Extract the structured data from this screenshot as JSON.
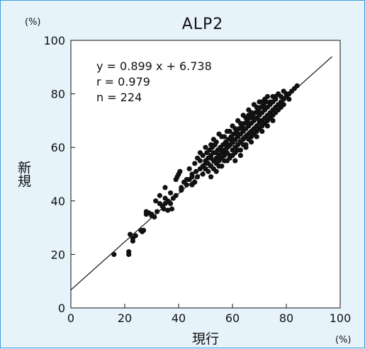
{
  "chart_data": {
    "type": "scatter",
    "title": "ALP2",
    "xlabel": "現行",
    "ylabel": "新規",
    "x_unit": "(%)",
    "y_unit": "(%)",
    "xlim": [
      0,
      100
    ],
    "ylim": [
      0,
      100
    ],
    "xticks": [
      "0",
      "20",
      "40",
      "60",
      "80",
      "100"
    ],
    "yticks": [
      "0",
      "20",
      "40",
      "60",
      "80",
      "100"
    ],
    "grid": false,
    "annotations": [
      "y = 0.899 x + 6.738",
      "r = 0.979",
      "n = 224"
    ],
    "regression": {
      "slope": 0.899,
      "intercept": 6.738,
      "x_range": [
        0,
        97
      ]
    },
    "points": [
      [
        16,
        20
      ],
      [
        21.5,
        21
      ],
      [
        21.5,
        20
      ],
      [
        22,
        27.5
      ],
      [
        23,
        25
      ],
      [
        23,
        26
      ],
      [
        26,
        29
      ],
      [
        26.5,
        28.5
      ],
      [
        28,
        35
      ],
      [
        29,
        35.5
      ],
      [
        30,
        34.5
      ],
      [
        31,
        34
      ],
      [
        31.5,
        40
      ],
      [
        32,
        36
      ],
      [
        33,
        42
      ],
      [
        34,
        38
      ],
      [
        34.5,
        37
      ],
      [
        35,
        45
      ],
      [
        35,
        39
      ],
      [
        36,
        40
      ],
      [
        36,
        36.5
      ],
      [
        37,
        39
      ],
      [
        37.5,
        37
      ],
      [
        38,
        41
      ],
      [
        39,
        48
      ],
      [
        39.5,
        49
      ],
      [
        40,
        50
      ],
      [
        40.5,
        51
      ],
      [
        41,
        44
      ],
      [
        42,
        47
      ],
      [
        43,
        46
      ],
      [
        44,
        48
      ],
      [
        44,
        52
      ],
      [
        45,
        49
      ],
      [
        45,
        50
      ],
      [
        46,
        47
      ],
      [
        46.5,
        51
      ],
      [
        47,
        49
      ],
      [
        48,
        52
      ],
      [
        48,
        55
      ],
      [
        49,
        53
      ],
      [
        49,
        57
      ],
      [
        50,
        52
      ],
      [
        50,
        55
      ],
      [
        50.5,
        58
      ],
      [
        51,
        54
      ],
      [
        51,
        56
      ],
      [
        51.5,
        59
      ],
      [
        52,
        53
      ],
      [
        52,
        57
      ],
      [
        52.5,
        60
      ],
      [
        53,
        55
      ],
      [
        53,
        58
      ],
      [
        53.5,
        61
      ],
      [
        54,
        54
      ],
      [
        54,
        56
      ],
      [
        54.5,
        59
      ],
      [
        55,
        55
      ],
      [
        55,
        57
      ],
      [
        55.5,
        60
      ],
      [
        56,
        56
      ],
      [
        56,
        58
      ],
      [
        56.5,
        61
      ],
      [
        57,
        57
      ],
      [
        57,
        59
      ],
      [
        57.5,
        62
      ],
      [
        58,
        58
      ],
      [
        58,
        60
      ],
      [
        58.5,
        63
      ],
      [
        59,
        57
      ],
      [
        59,
        61
      ],
      [
        59.5,
        64
      ],
      [
        60,
        59
      ],
      [
        60,
        62
      ],
      [
        60.5,
        65
      ],
      [
        61,
        60
      ],
      [
        61,
        63
      ],
      [
        61.5,
        66
      ],
      [
        62,
        61
      ],
      [
        62,
        64
      ],
      [
        62.5,
        67
      ],
      [
        63,
        62
      ],
      [
        63,
        65
      ],
      [
        63.5,
        68
      ],
      [
        64,
        63
      ],
      [
        64,
        66
      ],
      [
        64.5,
        69
      ],
      [
        65,
        64
      ],
      [
        65,
        67
      ],
      [
        65.5,
        70
      ],
      [
        66,
        65
      ],
      [
        66,
        68
      ],
      [
        66.5,
        71
      ],
      [
        67,
        66
      ],
      [
        67,
        69
      ],
      [
        67.5,
        72
      ],
      [
        68,
        67
      ],
      [
        68,
        70
      ],
      [
        68.5,
        73
      ],
      [
        69,
        68
      ],
      [
        69,
        71
      ],
      [
        69.5,
        74
      ],
      [
        70,
        69
      ],
      [
        70,
        72
      ],
      [
        70.5,
        75
      ],
      [
        71,
        70
      ],
      [
        71,
        73
      ],
      [
        71.5,
        76
      ],
      [
        72,
        71
      ],
      [
        72,
        74
      ],
      [
        72.5,
        77
      ],
      [
        73,
        72
      ],
      [
        73,
        75
      ],
      [
        74,
        73
      ],
      [
        74,
        76
      ],
      [
        75,
        74
      ],
      [
        75,
        77
      ],
      [
        76,
        75
      ],
      [
        76,
        78
      ],
      [
        77,
        76
      ],
      [
        78,
        77
      ],
      [
        78,
        79
      ],
      [
        79,
        78
      ],
      [
        80,
        79
      ],
      [
        80,
        80
      ],
      [
        81,
        80
      ],
      [
        82,
        81
      ],
      [
        83,
        82
      ],
      [
        84,
        83
      ],
      [
        49,
        50
      ],
      [
        51,
        51
      ],
      [
        53,
        52
      ],
      [
        55,
        53
      ],
      [
        57,
        55
      ],
      [
        59,
        56
      ],
      [
        61,
        58
      ],
      [
        63,
        59
      ],
      [
        65,
        61
      ],
      [
        67,
        62
      ],
      [
        69,
        64
      ],
      [
        71,
        66
      ],
      [
        73,
        68
      ],
      [
        75,
        70
      ],
      [
        52,
        49
      ],
      [
        54,
        51
      ],
      [
        56,
        53
      ],
      [
        58,
        55
      ],
      [
        60,
        57
      ],
      [
        62,
        59
      ],
      [
        64,
        61
      ],
      [
        66,
        63
      ],
      [
        68,
        65
      ],
      [
        70,
        67
      ],
      [
        72,
        69
      ],
      [
        74,
        71
      ],
      [
        76,
        73
      ],
      [
        78,
        75
      ],
      [
        62,
        70
      ],
      [
        64,
        72
      ],
      [
        66,
        74
      ],
      [
        68,
        76
      ],
      [
        70,
        77
      ],
      [
        72,
        78
      ],
      [
        60,
        68
      ],
      [
        58,
        66
      ],
      [
        56,
        64
      ],
      [
        54,
        62
      ],
      [
        52,
        61
      ],
      [
        50,
        60
      ],
      [
        48,
        58
      ],
      [
        47,
        56
      ],
      [
        46,
        54
      ],
      [
        50,
        54
      ],
      [
        52,
        56
      ],
      [
        54,
        58
      ],
      [
        56,
        59
      ],
      [
        58,
        61
      ],
      [
        60,
        63
      ],
      [
        62,
        65
      ],
      [
        64,
        67
      ],
      [
        66,
        69
      ],
      [
        68,
        71
      ],
      [
        70,
        73
      ],
      [
        72,
        75
      ],
      [
        74,
        77
      ],
      [
        76,
        79
      ],
      [
        53,
        63
      ],
      [
        55,
        65
      ],
      [
        57,
        64
      ],
      [
        59,
        66
      ],
      [
        61,
        67
      ],
      [
        63,
        69
      ],
      [
        65,
        71
      ],
      [
        67,
        73
      ],
      [
        69,
        75
      ],
      [
        71,
        77
      ],
      [
        73,
        79
      ],
      [
        75,
        79
      ],
      [
        77,
        80
      ],
      [
        79,
        81
      ],
      [
        61,
        55
      ],
      [
        63,
        57
      ],
      [
        65,
        60
      ],
      [
        67,
        64
      ],
      [
        69,
        66
      ],
      [
        71,
        68
      ],
      [
        73,
        70
      ],
      [
        75,
        72
      ],
      [
        77,
        74
      ],
      [
        79,
        76
      ],
      [
        81,
        78
      ],
      [
        45,
        46
      ],
      [
        43,
        48
      ],
      [
        41,
        45
      ],
      [
        39,
        42
      ],
      [
        37,
        43
      ],
      [
        35,
        41
      ],
      [
        33,
        39
      ],
      [
        30,
        35
      ],
      [
        28,
        36
      ],
      [
        27,
        29
      ],
      [
        24,
        27
      ],
      [
        66,
        72
      ],
      [
        70,
        70
      ]
    ]
  }
}
